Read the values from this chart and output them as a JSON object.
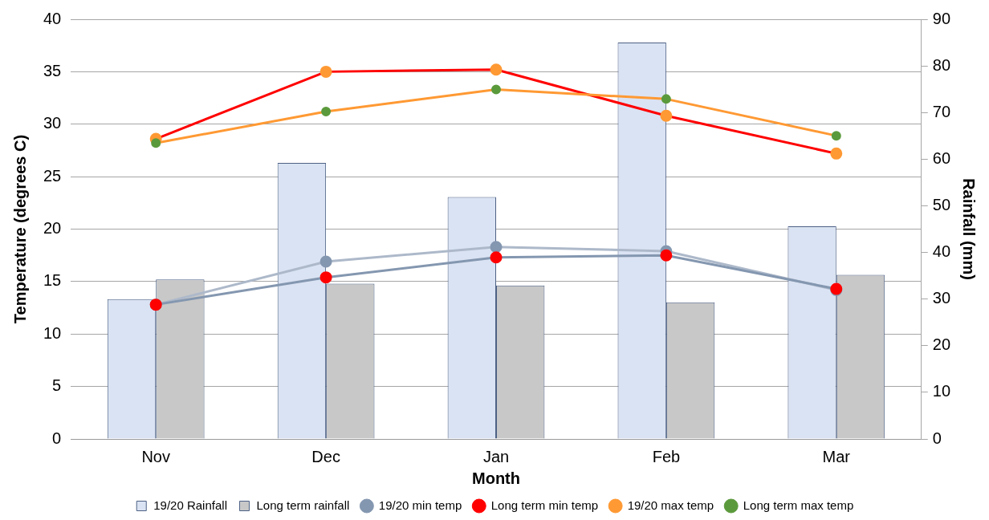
{
  "chart_data": {
    "type": "bar",
    "xlabel": "Month",
    "ylabel": "Temperature (degrees C)",
    "y2label": "Rainfall (mm)",
    "categories": [
      "Nov",
      "Dec",
      "Jan",
      "Feb",
      "Mar"
    ],
    "series": [
      {
        "name": "19/20 Rainfall",
        "axis": "y2",
        "color": "#dae3f3",
        "values": [
          30.0,
          59.2,
          51.9,
          85.0,
          45.6
        ]
      },
      {
        "name": "Long term rainfall",
        "axis": "y2",
        "color": "#c8c8c8",
        "values": [
          34.2,
          33.3,
          32.9,
          29.3,
          35.2
        ]
      },
      {
        "name": "19/20 min temp",
        "type": "line",
        "color": "#adb9ca",
        "colors": [
          "#8497b0",
          "#8497b0",
          "#8497b0",
          "#8497b0",
          "#8497b0"
        ],
        "values": [
          12.8,
          16.9,
          18.3,
          17.9,
          14.2
        ]
      },
      {
        "name": "Long term min temp",
        "type": "line",
        "color": "#8497b0",
        "colors": [
          "#ff0000",
          "#ff0000",
          "#ff0000",
          "#ff0000",
          "#ff0000"
        ],
        "values": [
          12.8,
          15.4,
          17.3,
          17.5,
          14.3
        ]
      },
      {
        "name": "19/20 max temp",
        "type": "line",
        "color": "#ff0000",
        "colors": [
          "#ff9933",
          "#ff9933",
          "#ff9933",
          "#ff9933",
          "#ff9933"
        ],
        "values": [
          28.6,
          35.0,
          35.2,
          30.8,
          27.2
        ]
      },
      {
        "name": "Long term max temp",
        "type": "line",
        "color": "#ff9933",
        "colors": [
          "#5b9a3c",
          "#5b9a3c",
          "#5b9a3c",
          "#5b9a3c",
          "#5b9a3c"
        ],
        "values": [
          28.2,
          31.2,
          33.3,
          32.4,
          28.9
        ]
      }
    ],
    "ylim": [
      0,
      40
    ],
    "yticks": [
      0,
      5,
      10,
      15,
      20,
      25,
      30,
      35,
      40
    ],
    "y2lim": [
      0,
      90
    ],
    "y2ticks": [
      0,
      10,
      20,
      30,
      40,
      50,
      60,
      70,
      80,
      90
    ],
    "grid": "y",
    "legend": "bottom",
    "marker": "circle",
    "line_style": "solid"
  }
}
